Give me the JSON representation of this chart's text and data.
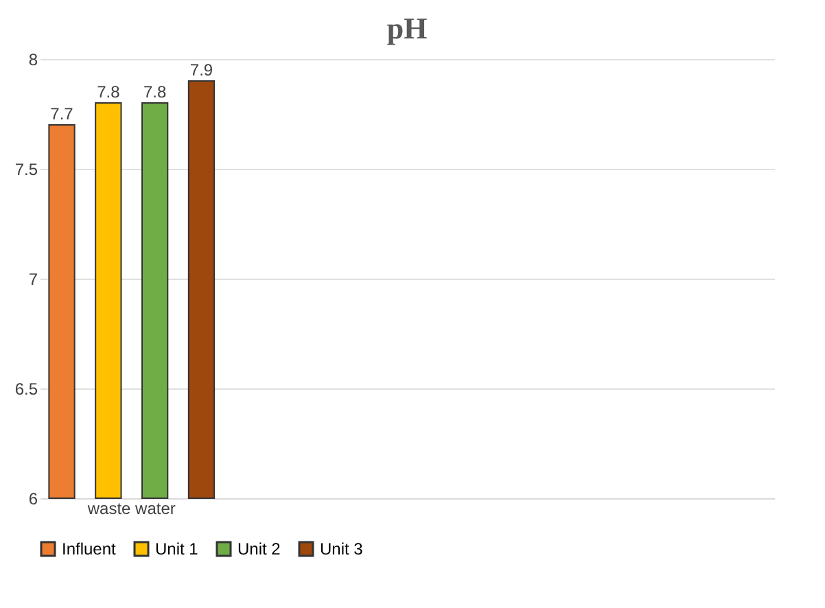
{
  "chart_data": {
    "type": "bar",
    "title": "pH",
    "categories": [
      "waste water",
      null,
      null,
      null
    ],
    "series": [
      {
        "name": "Influent",
        "color": "#ed7d31",
        "values": [
          7.7,
          null,
          null,
          null
        ]
      },
      {
        "name": "Unit 1",
        "color": "#ffc000",
        "values": [
          7.8,
          null,
          null,
          null
        ]
      },
      {
        "name": "Unit 2",
        "color": "#70ad47",
        "values": [
          7.8,
          null,
          null,
          null
        ]
      },
      {
        "name": "Unit 3",
        "color": "#9e480e",
        "values": [
          7.9,
          null,
          null,
          null
        ]
      }
    ],
    "ylim": [
      6,
      8
    ],
    "yticks": [
      6,
      6.5,
      7,
      7.5,
      8
    ],
    "grid": "y",
    "legend": "bottom",
    "data_labels": true
  }
}
